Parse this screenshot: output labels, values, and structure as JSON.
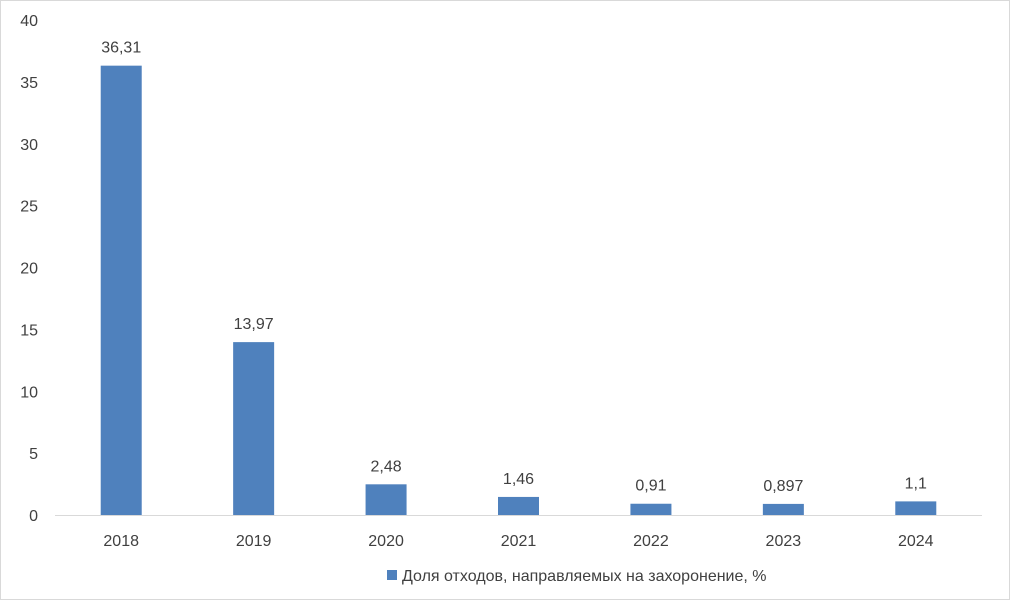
{
  "chart_data": {
    "type": "bar",
    "categories": [
      "2018",
      "2019",
      "2020",
      "2021",
      "2022",
      "2023",
      "2024"
    ],
    "series": [
      {
        "name": "Доля отходов, направляемых на захоронение, %",
        "values": [
          36.31,
          13.97,
          2.48,
          1.46,
          0.91,
          0.897,
          1.1
        ],
        "labels": [
          "36,31",
          "13,97",
          "2,48",
          "1,46",
          "0,91",
          "0,897",
          "1,1"
        ],
        "color": "#4f81bd"
      }
    ],
    "ylim": [
      0,
      40
    ],
    "yticks": [
      0,
      5,
      10,
      15,
      20,
      25,
      30,
      35,
      40
    ],
    "grid": false,
    "legend_position": "bottom"
  }
}
